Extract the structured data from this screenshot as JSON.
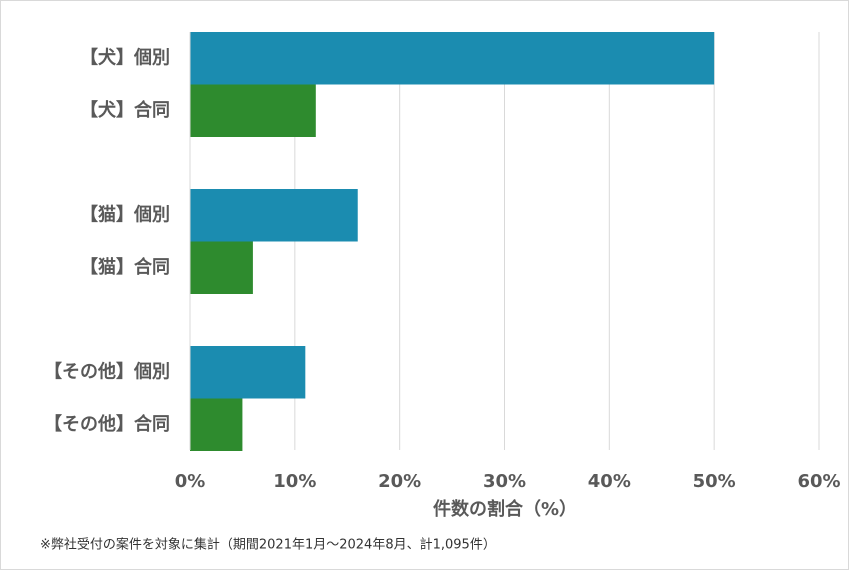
{
  "chart_data": {
    "type": "bar",
    "orientation": "horizontal",
    "categories": [
      "【犬】個別",
      "【犬】合同",
      "【猫】個別",
      "【猫】合同",
      "【その他】個別",
      "【その他】合同"
    ],
    "values": [
      50,
      12,
      16,
      6,
      11,
      5
    ],
    "colors": [
      "#1b8cb0",
      "#2e8b2e",
      "#1b8cb0",
      "#2e8b2e",
      "#1b8cb0",
      "#2e8b2e"
    ],
    "xlim": [
      0,
      60
    ],
    "xticks": [
      {
        "value": 0,
        "label": "0%"
      },
      {
        "value": 10,
        "label": "10%"
      },
      {
        "value": 20,
        "label": "20%"
      },
      {
        "value": 30,
        "label": "30%"
      },
      {
        "value": 40,
        "label": "40%"
      },
      {
        "value": 50,
        "label": "50%"
      },
      {
        "value": 60,
        "label": "60%"
      }
    ],
    "xlabel": "件数の割合（%）",
    "note": "※弊社受付の案件を対象に集計（期間2021年1月～2024年8月、計1,095件）",
    "grid": true
  }
}
